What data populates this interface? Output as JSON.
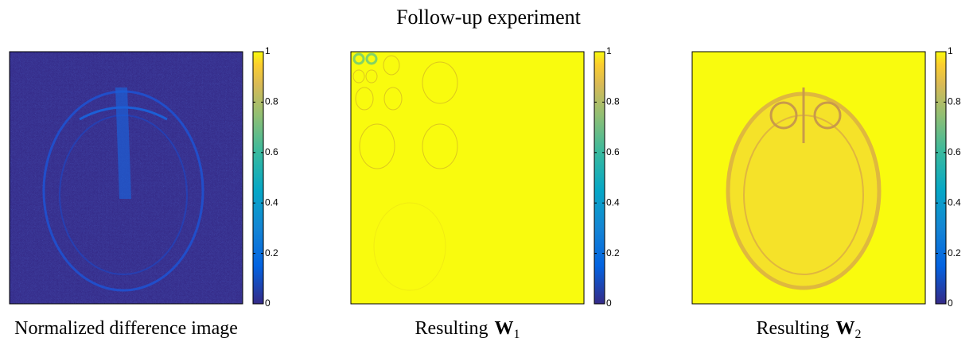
{
  "title": "Follow-up experiment",
  "panels": [
    {
      "caption": {
        "text": "Normalized difference image"
      },
      "colorbar": {
        "lim": [
          0,
          1
        ],
        "ticks": [
          0,
          0.2,
          0.4,
          0.6,
          0.8,
          1
        ]
      }
    },
    {
      "caption": {
        "text": "Resulting",
        "symbol": "W",
        "subscript": "1"
      },
      "colorbar": {
        "lim": [
          0,
          1
        ],
        "ticks": [
          0,
          0.2,
          0.4,
          0.6,
          0.8,
          1
        ]
      }
    },
    {
      "caption": {
        "text": "Resulting",
        "symbol": "W",
        "subscript": "2"
      },
      "colorbar": {
        "lim": [
          0,
          1
        ],
        "ticks": [
          0,
          0.2,
          0.4,
          0.6,
          0.8,
          1
        ]
      }
    }
  ]
}
